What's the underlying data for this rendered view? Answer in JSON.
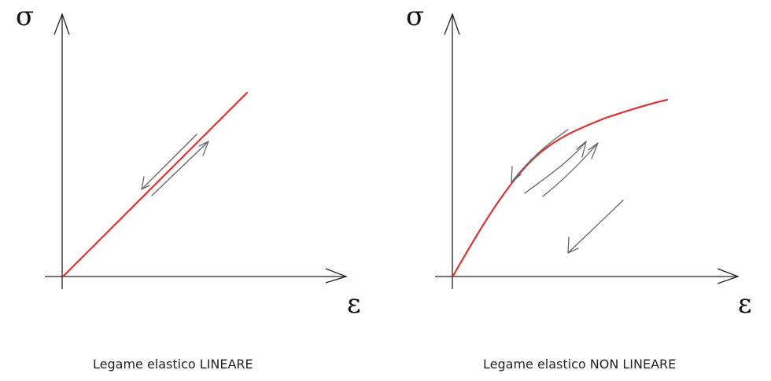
{
  "diagrams": [
    {
      "y_symbol": "σ",
      "x_symbol": "ε",
      "caption": "Legame elastico LINEARE"
    },
    {
      "y_symbol": "σ",
      "x_symbol": "ε",
      "caption": "Legame elastico NON LINEARE"
    }
  ],
  "colors": {
    "axis": "#222222",
    "curve": "#d93535",
    "arrow": "#666666",
    "text": "#111111"
  },
  "icons": [
    "loading-arrow-icon",
    "unloading-arrow-icon",
    "arrowhead-icon"
  ]
}
